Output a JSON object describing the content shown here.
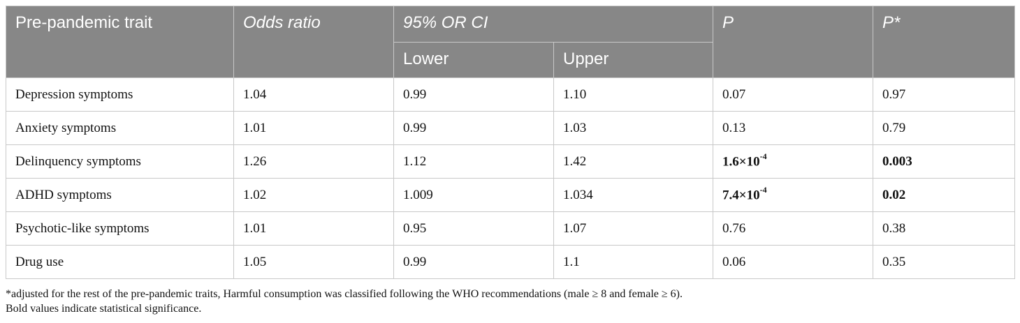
{
  "header": {
    "trait": "Pre-pandemic trait",
    "odds_ratio": "Odds ratio",
    "ci": "95% OR CI",
    "lower": "Lower",
    "upper": "Upper",
    "p": "P",
    "p_adj": "P*"
  },
  "rows": [
    {
      "trait": "Depression symptoms",
      "or": "1.04",
      "lower": "0.99",
      "upper": "1.10",
      "p": "0.07",
      "p_adj": "0.97",
      "p_bold": false,
      "p_adj_bold": false
    },
    {
      "trait": "Anxiety symptoms",
      "or": "1.01",
      "lower": "0.99",
      "upper": "1.03",
      "p": "0.13",
      "p_adj": "0.79",
      "p_bold": false,
      "p_adj_bold": false
    },
    {
      "trait": "Delinquency symptoms",
      "or": "1.26",
      "lower": "1.12",
      "upper": "1.42",
      "p_base": "1.6×10",
      "p_exp": "-4",
      "p_adj": "0.003",
      "p_bold": true,
      "p_adj_bold": true
    },
    {
      "trait": "ADHD symptoms",
      "or": "1.02",
      "lower": "1.009",
      "upper": "1.034",
      "p_base": "7.4×10",
      "p_exp": "-4",
      "p_adj": "0.02",
      "p_bold": true,
      "p_adj_bold": true
    },
    {
      "trait": "Psychotic-like symptoms",
      "or": "1.01",
      "lower": "0.95",
      "upper": "1.07",
      "p": "0.76",
      "p_adj": "0.38",
      "p_bold": false,
      "p_adj_bold": false
    },
    {
      "trait": "Drug use",
      "or": "1.05",
      "lower": "0.99",
      "upper": "1.1",
      "p": "0.06",
      "p_adj": "0.35",
      "p_bold": false,
      "p_adj_bold": false
    }
  ],
  "footnotes": {
    "adjusted": "*adjusted for the rest of the pre-pandemic traits, Harmful consumption was classified following the WHO recommendations (male ≥ 8 and female ≥ 6).",
    "bold": "Bold values indicate statistical significance."
  }
}
